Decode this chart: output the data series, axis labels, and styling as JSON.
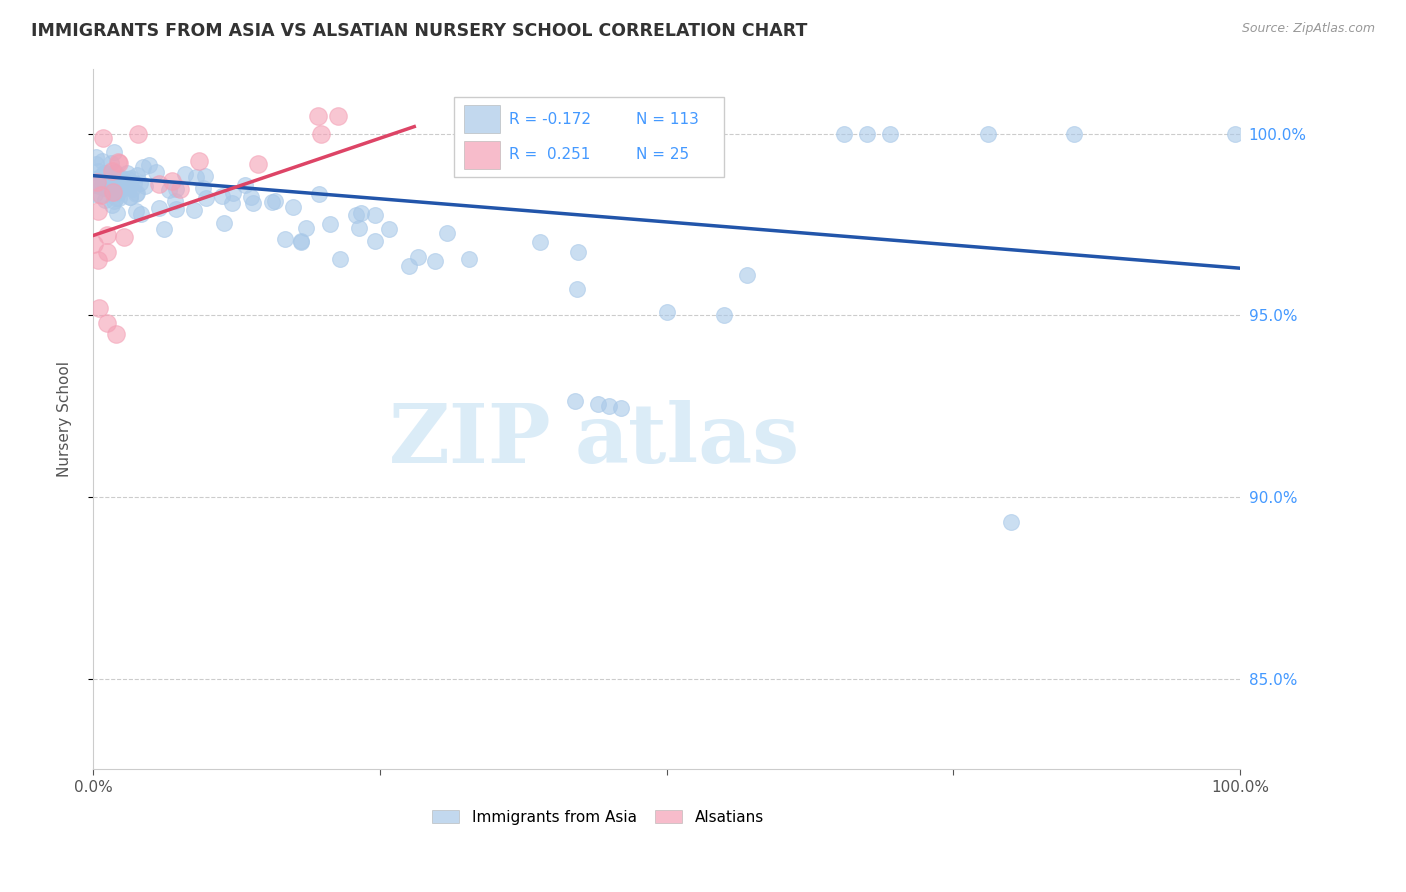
{
  "title": "IMMIGRANTS FROM ASIA VS ALSATIAN NURSERY SCHOOL CORRELATION CHART",
  "source": "Source: ZipAtlas.com",
  "ylabel": "Nursery School",
  "y_tick_labels": [
    "85.0%",
    "90.0%",
    "95.0%",
    "100.0%"
  ],
  "y_ticks": [
    0.85,
    0.9,
    0.95,
    1.0
  ],
  "x_range": [
    0.0,
    1.0
  ],
  "y_range": [
    0.825,
    1.018
  ],
  "blue_R": -0.172,
  "blue_N": 113,
  "pink_R": 0.251,
  "pink_N": 25,
  "blue_color": "#a8c8e8",
  "pink_color": "#f4a0b5",
  "blue_line_color": "#2255aa",
  "pink_line_color": "#dd4466",
  "watermark_color": "#cce4f5",
  "grid_color": "#cccccc",
  "right_tick_color": "#4499ff",
  "title_color": "#333333",
  "source_color": "#999999"
}
